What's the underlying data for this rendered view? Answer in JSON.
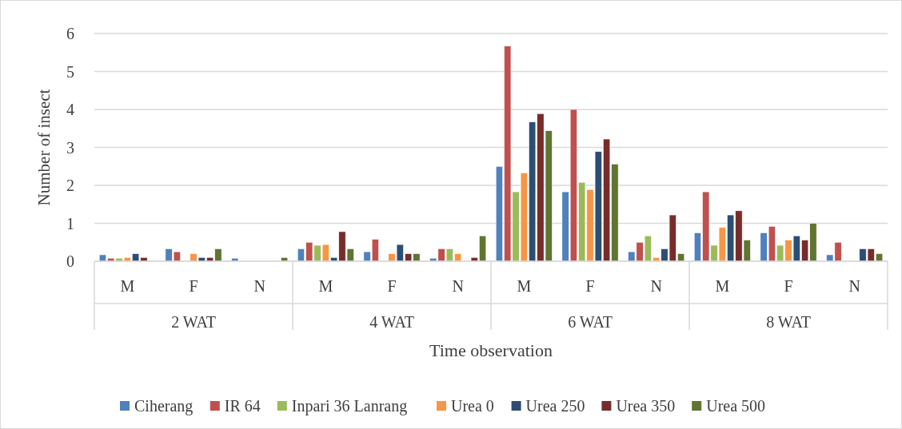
{
  "chart_data": {
    "type": "bar",
    "xlabel": "Time observation",
    "ylabel": "Number of insect",
    "categories": [
      "M",
      "F",
      "N",
      "M",
      "F",
      "N",
      "M",
      "F",
      "N",
      "M",
      "F",
      "N"
    ],
    "annotations": [
      "2 WAT",
      "4 WAT",
      "6 WAT",
      "8 WAT"
    ],
    "series": [
      {
        "name": "Ciherang",
        "color": "#4f81bd",
        "values": [
          0.17,
          0.33,
          0.08,
          0.33,
          0.25,
          0.08,
          2.5,
          1.83,
          0.25,
          0.75,
          0.75,
          0.17
        ]
      },
      {
        "name": "IR 64",
        "color": "#c0504d",
        "values": [
          0.08,
          0.25,
          0,
          0.5,
          0.58,
          0.33,
          5.67,
          4.0,
          0.5,
          1.83,
          0.92,
          0.5
        ]
      },
      {
        "name": "Inpari 36 Lanrang",
        "color": "#9bbb59",
        "values": [
          0.08,
          0,
          0,
          0.42,
          0,
          0.33,
          1.83,
          2.08,
          0.67,
          0.42,
          0.42,
          0
        ]
      },
      {
        "name": "Urea 0",
        "color": "#f79646",
        "values": [
          0.1,
          0.2,
          0,
          0.44,
          0.2,
          0.2,
          2.33,
          1.89,
          0.1,
          0.89,
          0.56,
          0
        ]
      },
      {
        "name": "Urea 250",
        "color": "#2c4d75",
        "values": [
          0.2,
          0.1,
          0,
          0.1,
          0.44,
          0,
          3.67,
          2.89,
          0.33,
          1.22,
          0.67,
          0.33
        ]
      },
      {
        "name": "Urea 350",
        "color": "#772c2a",
        "values": [
          0.1,
          0.1,
          0,
          0.78,
          0.2,
          0.1,
          3.89,
          3.22,
          1.22,
          1.33,
          0.56,
          0.33
        ]
      },
      {
        "name": "Urea 500",
        "color": "#5f7530",
        "values": [
          0,
          0.33,
          0.1,
          0.33,
          0.2,
          0.67,
          3.44,
          2.56,
          0.2,
          0.56,
          1.0,
          0.2
        ]
      }
    ],
    "ylim": [
      0,
      6
    ],
    "yticks": [
      0,
      1,
      2,
      3,
      4,
      5,
      6
    ],
    "grid": "y",
    "legend": "bottom"
  }
}
